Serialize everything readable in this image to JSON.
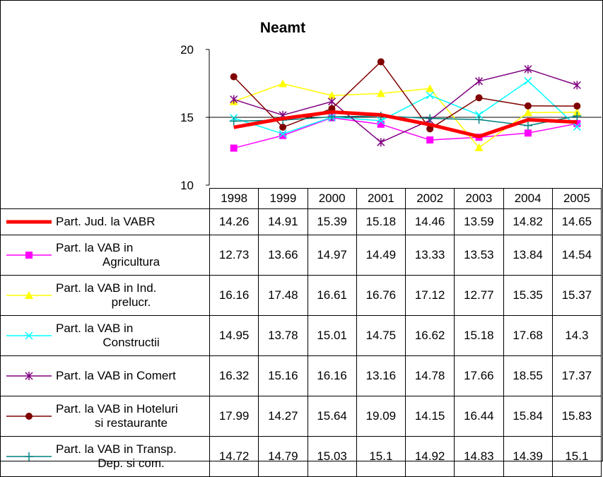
{
  "chart_data": {
    "type": "line",
    "title": "Neamt",
    "categories": [
      "1998",
      "1999",
      "2000",
      "2001",
      "2002",
      "2003",
      "2004",
      "2005"
    ],
    "ylim": [
      10,
      20
    ],
    "yticks": [
      "10",
      "15",
      "20"
    ],
    "reference_line": 15,
    "grid": false,
    "legend": "table",
    "series": [
      {
        "name_lines": [
          "Part. Jud. la VABR"
        ],
        "display": [
          "14.26",
          "14.91",
          "15.39",
          "15.18",
          "14.46",
          "13.59",
          "14.82",
          "14.65"
        ],
        "values": [
          14.26,
          14.91,
          15.39,
          15.18,
          14.46,
          13.59,
          14.82,
          14.65
        ],
        "color": "#ff0000",
        "marker": "none",
        "width": 5
      },
      {
        "name_lines": [
          "Part. la VAB in",
          "Agricultura"
        ],
        "display": [
          "12.73",
          "13.66",
          "14.97",
          "14.49",
          "13.33",
          "13.53",
          "13.84",
          "14.54"
        ],
        "values": [
          12.73,
          13.66,
          14.97,
          14.49,
          13.33,
          13.53,
          13.84,
          14.54
        ],
        "color": "#ff00ff",
        "marker": "square",
        "width": 1.5
      },
      {
        "name_lines": [
          "Part. la VAB in Ind.",
          "prelucr."
        ],
        "display": [
          "16.16",
          "17.48",
          "16.61",
          "16.76",
          "17.12",
          "12.77",
          "15.35",
          "15.37"
        ],
        "values": [
          16.16,
          17.48,
          16.61,
          16.76,
          17.12,
          12.77,
          15.35,
          15.37
        ],
        "color": "#ffff00",
        "marker": "triangle",
        "width": 1.5
      },
      {
        "name_lines": [
          "Part. la VAB in",
          "Constructii"
        ],
        "display": [
          "14.95",
          "13.78",
          "15.01",
          "14.75",
          "16.62",
          "15.18",
          "17.68",
          "14.3"
        ],
        "values": [
          14.95,
          13.78,
          15.01,
          14.75,
          16.62,
          15.18,
          17.68,
          14.3
        ],
        "color": "#00ffff",
        "marker": "x",
        "width": 1.5
      },
      {
        "name_lines": [
          "Part. la VAB in Comert"
        ],
        "display": [
          "16.32",
          "15.16",
          "16.16",
          "13.16",
          "14.78",
          "17.66",
          "18.55",
          "17.37"
        ],
        "values": [
          16.32,
          15.16,
          16.16,
          13.16,
          14.78,
          17.66,
          18.55,
          17.37
        ],
        "color": "#800080",
        "marker": "star",
        "width": 1.5
      },
      {
        "name_lines": [
          "Part. la VAB in Hoteluri",
          "si restaurante"
        ],
        "display": [
          "17.99",
          "14.27",
          "15.64",
          "19.09",
          "14.15",
          "16.44",
          "15.84",
          "15.83"
        ],
        "values": [
          17.99,
          14.27,
          15.64,
          19.09,
          14.15,
          16.44,
          15.84,
          15.83
        ],
        "color": "#800000",
        "marker": "circle",
        "width": 1.5
      },
      {
        "name_lines": [
          "Part. la VAB in Transp.",
          "Dep. si com."
        ],
        "display": [
          "14.72",
          "14.79",
          "15.03",
          "15.1",
          "14.92",
          "14.83",
          "14.39",
          "15.1"
        ],
        "values": [
          14.72,
          14.79,
          15.03,
          15.1,
          14.92,
          14.83,
          14.39,
          15.1
        ],
        "color": "#008080",
        "marker": "plus",
        "width": 1.5
      }
    ]
  }
}
